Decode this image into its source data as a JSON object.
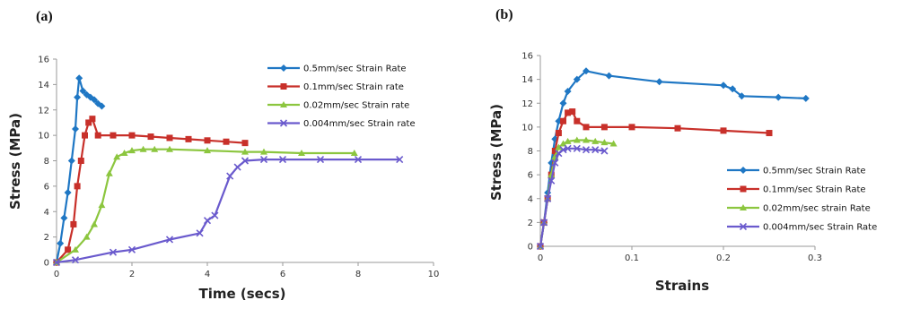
{
  "panels": {
    "a_label": "(a)",
    "b_label": "(b)"
  },
  "colors": {
    "blue": "#1f77c4",
    "red": "#c8302a",
    "green": "#8cc63f",
    "purple": "#6a5acd",
    "axis": "#9a9a9a"
  },
  "chart_data": [
    {
      "type": "line",
      "xlabel": "Time (secs)",
      "ylabel": "Stress (MPa)",
      "xlim": [
        0,
        10
      ],
      "ylim": [
        0,
        16
      ],
      "xticks": [
        "0",
        "2",
        "4",
        "6",
        "8",
        "10"
      ],
      "yticks": [
        "0",
        "2",
        "4",
        "6",
        "8",
        "10",
        "12",
        "14",
        "16"
      ],
      "grid": false,
      "legend_position": "top-right",
      "series": [
        {
          "name": "0.5mm/sec Strain Rate",
          "color": "#1f77c4",
          "marker": "diamond",
          "x": [
            0,
            0.1,
            0.2,
            0.3,
            0.4,
            0.5,
            0.55,
            0.6,
            0.7,
            0.8,
            0.9,
            1.0,
            1.1,
            1.2
          ],
          "y": [
            0,
            1.5,
            3.5,
            5.5,
            8,
            10.5,
            13,
            14.5,
            13.5,
            13.2,
            13,
            12.8,
            12.5,
            12.3
          ]
        },
        {
          "name": "0.1mm/sec Strain rate",
          "color": "#c8302a",
          "marker": "square",
          "x": [
            0,
            0.3,
            0.45,
            0.55,
            0.65,
            0.75,
            0.85,
            0.95,
            1.1,
            1.5,
            2.0,
            2.5,
            3.0,
            3.5,
            4.0,
            4.5,
            5.0
          ],
          "y": [
            0,
            1,
            3,
            6,
            8,
            10,
            11,
            11.3,
            10,
            10,
            10,
            9.9,
            9.8,
            9.7,
            9.6,
            9.5,
            9.4
          ]
        },
        {
          "name": "0.02mm/sec Strain rate",
          "color": "#8cc63f",
          "marker": "triangle",
          "x": [
            0,
            0.5,
            0.8,
            1.0,
            1.2,
            1.4,
            1.6,
            1.8,
            2.0,
            2.3,
            2.6,
            3.0,
            4.0,
            5.0,
            5.5,
            6.5,
            7.9
          ],
          "y": [
            0,
            1,
            2,
            3,
            4.5,
            7,
            8.3,
            8.6,
            8.8,
            8.9,
            8.9,
            8.9,
            8.8,
            8.7,
            8.7,
            8.6,
            8.6
          ]
        },
        {
          "name": "0.004mm/sec Strain rate",
          "color": "#6a5acd",
          "marker": "x",
          "x": [
            0,
            0.5,
            1.5,
            2.0,
            3.0,
            3.8,
            4.0,
            4.2,
            4.6,
            4.8,
            5.0,
            5.5,
            6.0,
            7.0,
            8.0,
            9.1
          ],
          "y": [
            0,
            0.2,
            0.8,
            1.0,
            1.8,
            2.3,
            3.3,
            3.7,
            6.8,
            7.5,
            8.0,
            8.1,
            8.1,
            8.1,
            8.1,
            8.1
          ]
        }
      ]
    },
    {
      "type": "line",
      "xlabel": "Strains",
      "ylabel": "Stress (MPa)",
      "xlim": [
        0,
        0.3
      ],
      "ylim": [
        0,
        16
      ],
      "xticks": [
        "0",
        "0.1",
        "0.2",
        "0.3"
      ],
      "yticks": [
        "0",
        "2",
        "4",
        "6",
        "8",
        "10",
        "12",
        "14",
        "16"
      ],
      "grid": false,
      "legend_position": "bottom-right",
      "series": [
        {
          "name": "0.5mm/sec Strain Rate",
          "color": "#1f77c4",
          "marker": "diamond",
          "x": [
            0,
            0.004,
            0.008,
            0.012,
            0.016,
            0.02,
            0.025,
            0.03,
            0.04,
            0.05,
            0.075,
            0.13,
            0.2,
            0.21,
            0.22,
            0.26,
            0.29
          ],
          "y": [
            0,
            2,
            4.5,
            7,
            9,
            10.5,
            12,
            13,
            14,
            14.7,
            14.3,
            13.8,
            13.5,
            13.2,
            12.6,
            12.5,
            12.4
          ]
        },
        {
          "name": "0.1mm/sec Strain Rate",
          "color": "#c8302a",
          "marker": "square",
          "x": [
            0,
            0.004,
            0.008,
            0.012,
            0.016,
            0.02,
            0.025,
            0.03,
            0.035,
            0.04,
            0.05,
            0.07,
            0.1,
            0.15,
            0.2,
            0.25
          ],
          "y": [
            0,
            2,
            4,
            6,
            8,
            9.5,
            10.5,
            11.2,
            11.3,
            10.5,
            10,
            10,
            10,
            9.9,
            9.7,
            9.5
          ]
        },
        {
          "name": "0.02mm/sec strain Rate",
          "color": "#8cc63f",
          "marker": "triangle",
          "x": [
            0,
            0.004,
            0.008,
            0.012,
            0.016,
            0.02,
            0.025,
            0.03,
            0.04,
            0.05,
            0.06,
            0.07,
            0.08
          ],
          "y": [
            0,
            2,
            4,
            6,
            7.5,
            8.3,
            8.6,
            8.8,
            8.9,
            8.9,
            8.8,
            8.7,
            8.6
          ]
        },
        {
          "name": "0.004mm/sec Strain Rate",
          "color": "#6a5acd",
          "marker": "x",
          "x": [
            0,
            0.004,
            0.008,
            0.012,
            0.016,
            0.02,
            0.025,
            0.03,
            0.04,
            0.05,
            0.06,
            0.07
          ],
          "y": [
            0,
            2,
            4,
            5.5,
            7,
            7.8,
            8.1,
            8.2,
            8.2,
            8.1,
            8.1,
            8.0
          ]
        }
      ]
    }
  ]
}
